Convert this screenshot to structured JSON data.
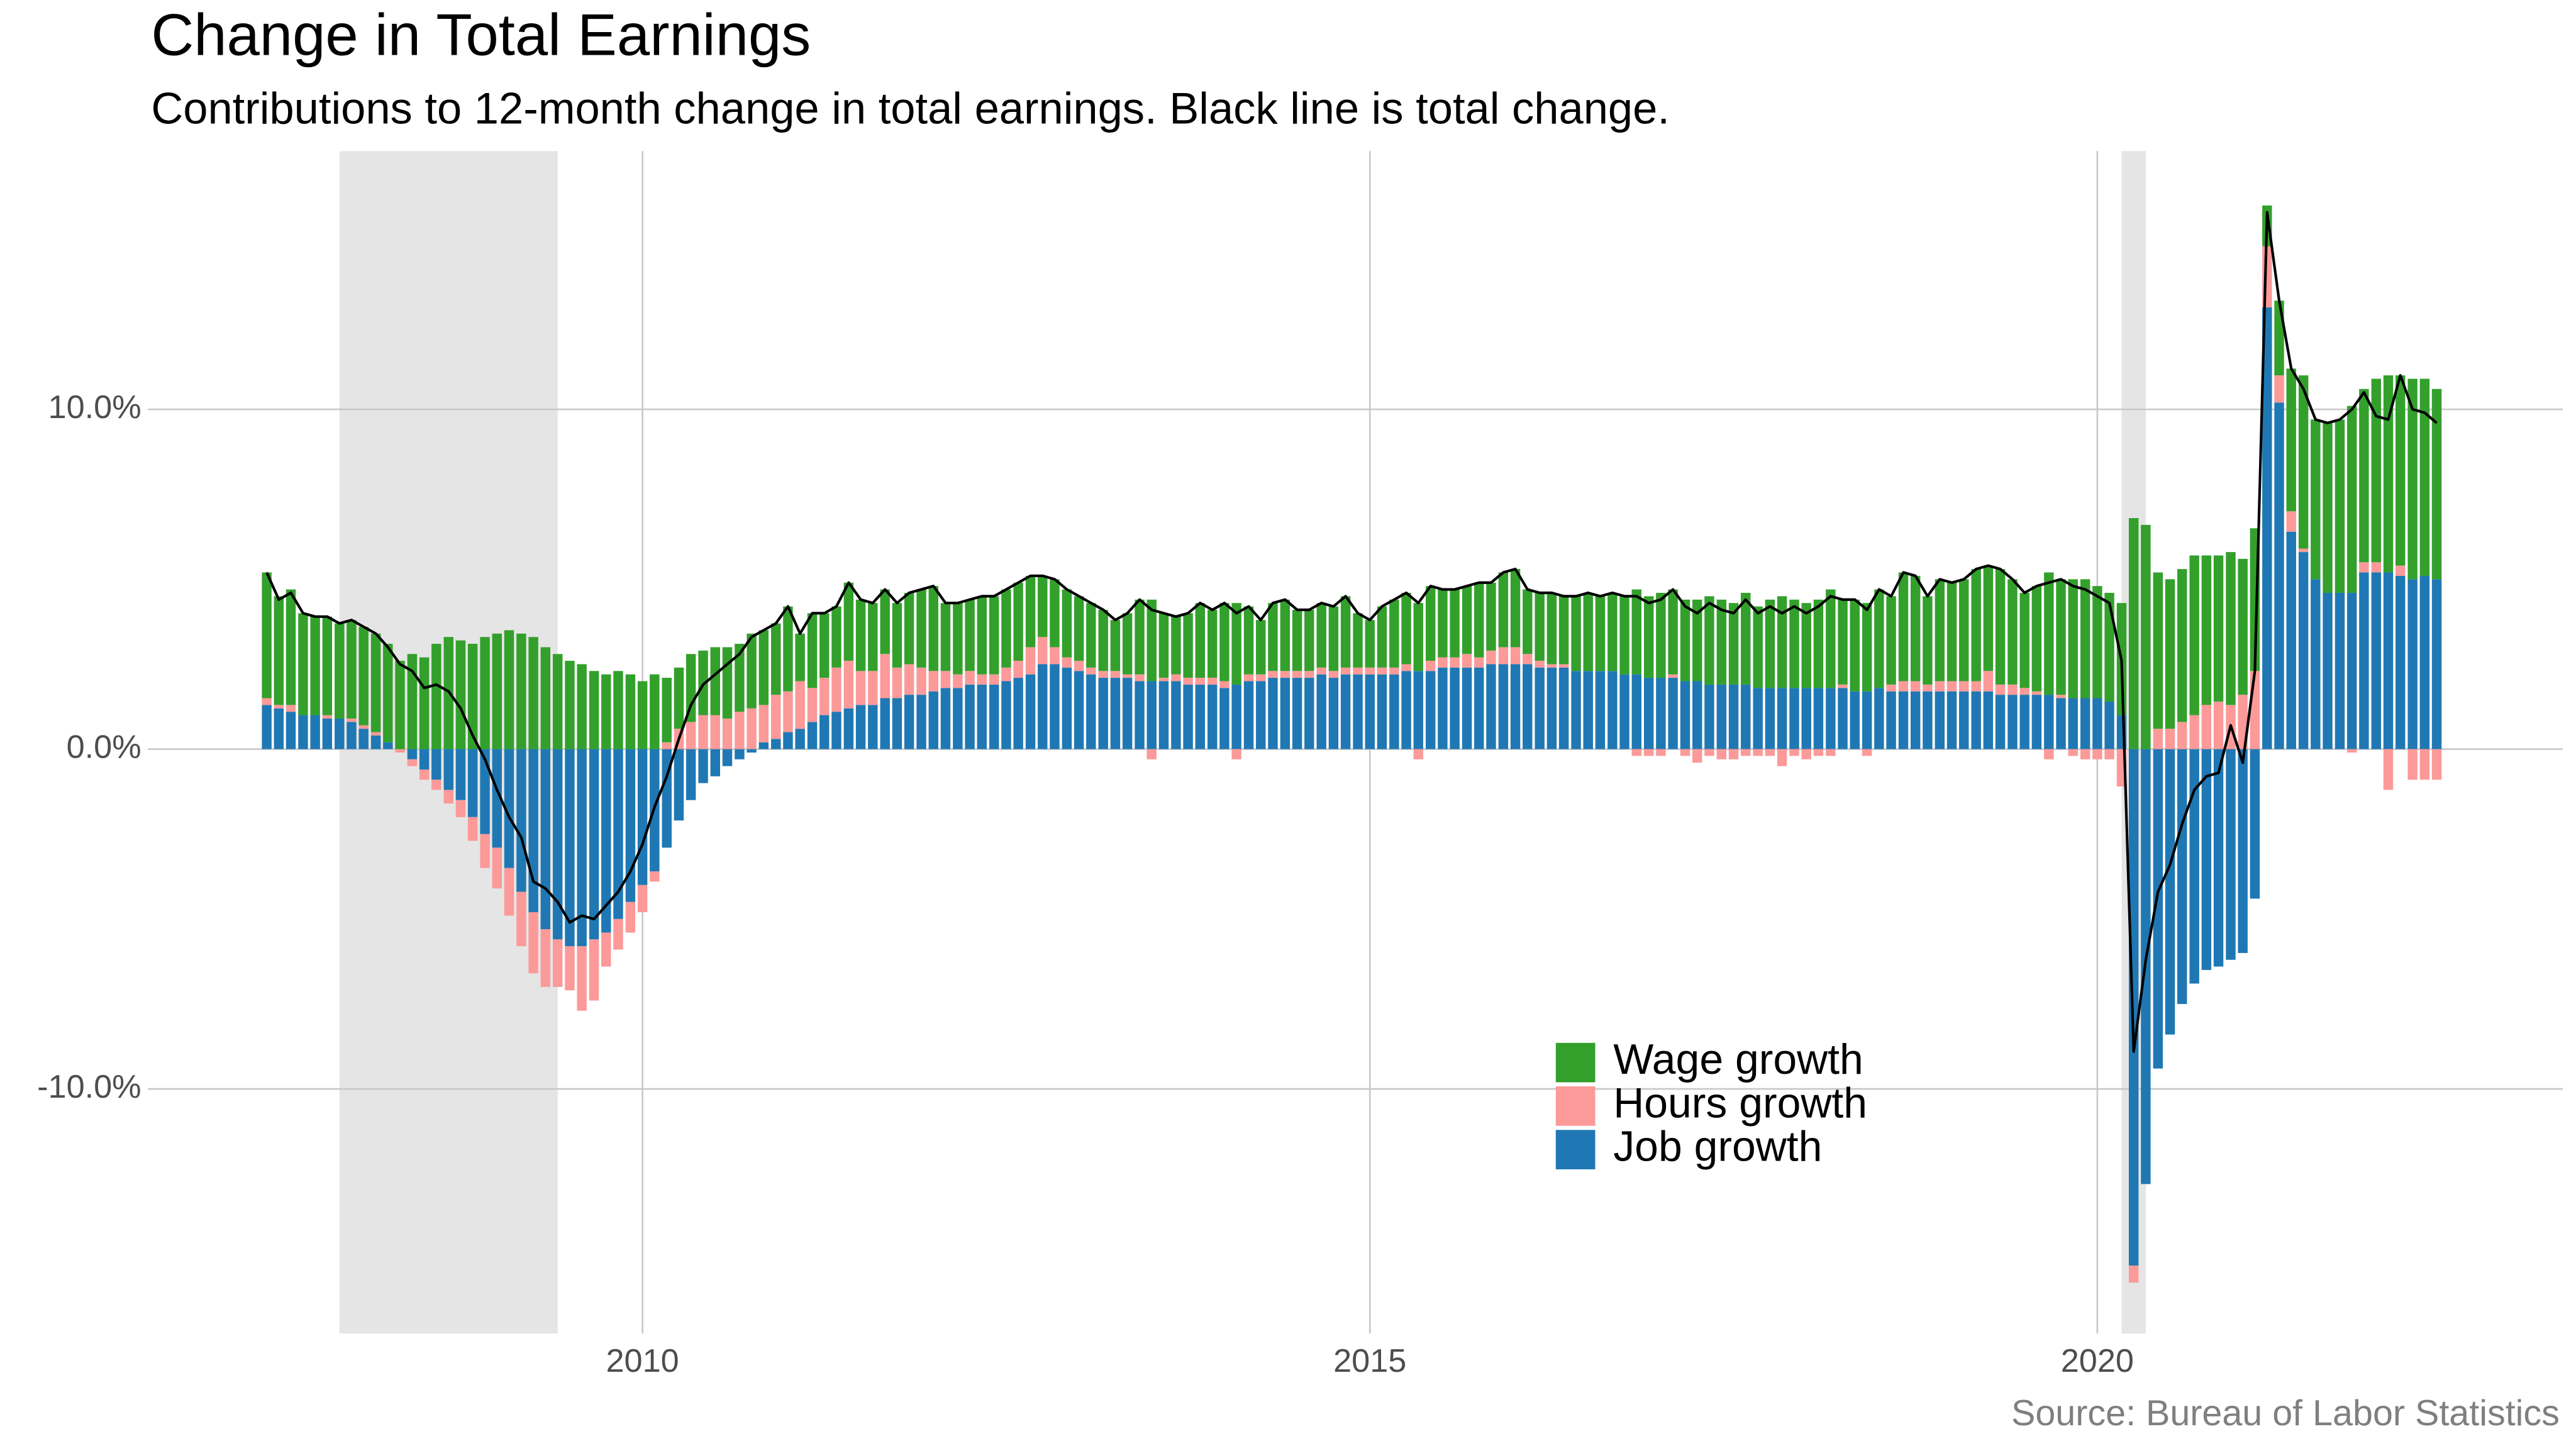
{
  "chart_data": {
    "type": "stacked_bar",
    "title": "Change in Total Earnings",
    "subtitle": "Contributions to 12-month change in total earnings. Black line is total change.",
    "source": "Source: Bureau of Labor Statistics",
    "xlim": [
      2006.6,
      2023.2
    ],
    "xticks": [
      2010,
      2015,
      2020
    ],
    "ylim": [
      -17.2,
      17.6
    ],
    "yticks": [
      {
        "value": -10,
        "label": "-10.0%"
      },
      {
        "value": 0,
        "label": "0.0%"
      },
      {
        "value": 10,
        "label": "10.0%"
      }
    ],
    "grid": true,
    "shaded_periods": [
      [
        2007.917,
        2009.417
      ],
      [
        2020.167,
        2020.333
      ]
    ],
    "shade_color": "#e5e5e5",
    "x": [
      2007.417,
      2007.5,
      2007.583,
      2007.667,
      2007.75,
      2007.833,
      2007.917,
      2008,
      2008.083,
      2008.167,
      2008.25,
      2008.333,
      2008.417,
      2008.5,
      2008.583,
      2008.667,
      2008.75,
      2008.833,
      2008.917,
      2009,
      2009.083,
      2009.167,
      2009.25,
      2009.333,
      2009.417,
      2009.5,
      2009.583,
      2009.667,
      2009.75,
      2009.833,
      2009.917,
      2010,
      2010.083,
      2010.167,
      2010.25,
      2010.333,
      2010.417,
      2010.5,
      2010.583,
      2010.667,
      2010.75,
      2010.833,
      2010.917,
      2011,
      2011.083,
      2011.167,
      2011.25,
      2011.333,
      2011.417,
      2011.5,
      2011.583,
      2011.667,
      2011.75,
      2011.833,
      2011.917,
      2012,
      2012.083,
      2012.167,
      2012.25,
      2012.333,
      2012.417,
      2012.5,
      2012.583,
      2012.667,
      2012.75,
      2012.833,
      2012.917,
      2013,
      2013.083,
      2013.167,
      2013.25,
      2013.333,
      2013.417,
      2013.5,
      2013.583,
      2013.667,
      2013.75,
      2013.833,
      2013.917,
      2014,
      2014.083,
      2014.167,
      2014.25,
      2014.333,
      2014.417,
      2014.5,
      2014.583,
      2014.667,
      2014.75,
      2014.833,
      2014.917,
      2015,
      2015.083,
      2015.167,
      2015.25,
      2015.333,
      2015.417,
      2015.5,
      2015.583,
      2015.667,
      2015.75,
      2015.833,
      2015.917,
      2016,
      2016.083,
      2016.167,
      2016.25,
      2016.333,
      2016.417,
      2016.5,
      2016.583,
      2016.667,
      2016.75,
      2016.833,
      2016.917,
      2017,
      2017.083,
      2017.167,
      2017.25,
      2017.333,
      2017.417,
      2017.5,
      2017.583,
      2017.667,
      2017.75,
      2017.833,
      2017.917,
      2018,
      2018.083,
      2018.167,
      2018.25,
      2018.333,
      2018.417,
      2018.5,
      2018.583,
      2018.667,
      2018.75,
      2018.833,
      2018.917,
      2019,
      2019.083,
      2019.167,
      2019.25,
      2019.333,
      2019.417,
      2019.5,
      2019.583,
      2019.667,
      2019.75,
      2019.833,
      2019.917,
      2020,
      2020.083,
      2020.167,
      2020.25,
      2020.333,
      2020.417,
      2020.5,
      2020.583,
      2020.667,
      2020.75,
      2020.833,
      2020.917,
      2021,
      2021.083,
      2021.167,
      2021.25,
      2021.333,
      2021.417,
      2021.5,
      2021.583,
      2021.667,
      2021.75,
      2021.833,
      2021.917,
      2022,
      2022.083,
      2022.167,
      2022.25,
      2022.333
    ],
    "series": [
      {
        "name": "Wage growth",
        "color": "#33a02c",
        "values": [
          3.7,
          3.2,
          3.4,
          3.0,
          2.9,
          2.9,
          2.8,
          2.9,
          2.9,
          2.9,
          2.9,
          2.6,
          2.8,
          2.7,
          3.1,
          3.3,
          3.2,
          3.1,
          3.3,
          3.4,
          3.5,
          3.4,
          3.3,
          3.0,
          2.8,
          2.6,
          2.5,
          2.3,
          2.2,
          2.3,
          2.2,
          2.0,
          2.2,
          1.9,
          1.8,
          2.0,
          1.9,
          2.0,
          2.1,
          2.0,
          2.2,
          2.2,
          2.1,
          2.5,
          1.4,
          2.2,
          1.9,
          1.8,
          2.3,
          2.1,
          2.0,
          1.9,
          1.9,
          2.1,
          2.3,
          2.5,
          2.0,
          2.1,
          2.1,
          2.3,
          2.3,
          2.3,
          2.3,
          2.1,
          1.8,
          2.0,
          2.0,
          1.9,
          1.9,
          1.8,
          1.5,
          1.8,
          2.2,
          2.4,
          1.9,
          1.7,
          1.9,
          2.2,
          2.0,
          2.3,
          2.4,
          2.0,
          1.6,
          2.0,
          2.1,
          1.8,
          1.8,
          1.9,
          1.9,
          2.1,
          1.6,
          1.4,
          1.8,
          2.0,
          2.1,
          2.0,
          2.2,
          2.0,
          2.0,
          2.0,
          2.2,
          2.0,
          2.2,
          2.3,
          1.9,
          2.0,
          2.1,
          2.0,
          2.2,
          2.3,
          2.2,
          2.3,
          2.3,
          2.5,
          2.4,
          2.5,
          2.5,
          2.4,
          2.4,
          2.6,
          2.5,
          2.4,
          2.7,
          2.4,
          2.6,
          2.7,
          2.6,
          2.5,
          2.6,
          2.9,
          2.5,
          2.7,
          2.6,
          2.9,
          2.6,
          3.2,
          3.1,
          2.6,
          3.0,
          2.9,
          3.0,
          3.3,
          3.1,
          3.4,
          3.1,
          2.8,
          3.1,
          3.6,
          3.4,
          3.5,
          3.5,
          3.3,
          3.2,
          3.3,
          6.8,
          6.6,
          4.6,
          4.4,
          4.5,
          4.7,
          4.4,
          4.3,
          4.5,
          4.0,
          4.2,
          1.2,
          2.2,
          4.2,
          5.1,
          4.7,
          5.0,
          5.1,
          5.5,
          5.1,
          5.4,
          5.8,
          5.6,
          5.9,
          5.8,
          5.6
        ]
      },
      {
        "name": "Hours growth",
        "color": "#fb9a99",
        "values": [
          0.2,
          0.1,
          0.2,
          0.0,
          0.0,
          0.1,
          0.0,
          0.1,
          0.1,
          0.1,
          0.0,
          -0.1,
          -0.2,
          -0.3,
          -0.3,
          -0.4,
          -0.5,
          -0.7,
          -1.0,
          -1.2,
          -1.4,
          -1.6,
          -1.8,
          -1.7,
          -1.4,
          -1.3,
          -1.9,
          -1.8,
          -1.0,
          -0.9,
          -0.9,
          -0.8,
          -0.3,
          0.2,
          0.6,
          0.8,
          1.0,
          1.0,
          0.9,
          1.1,
          1.2,
          1.1,
          1.3,
          1.2,
          1.4,
          1.0,
          1.1,
          1.3,
          1.4,
          1.0,
          1.0,
          1.3,
          0.9,
          0.9,
          0.8,
          0.6,
          0.5,
          0.4,
          0.4,
          0.3,
          0.3,
          0.4,
          0.5,
          0.8,
          0.8,
          0.5,
          0.3,
          0.3,
          0.2,
          0.2,
          0.2,
          0.1,
          0.2,
          -0.3,
          0.1,
          0.2,
          0.2,
          0.2,
          0.2,
          0.2,
          -0.3,
          0.2,
          0.2,
          0.2,
          0.2,
          0.2,
          0.2,
          0.2,
          0.2,
          0.2,
          0.2,
          0.2,
          0.2,
          0.2,
          0.2,
          -0.3,
          0.3,
          0.3,
          0.3,
          0.4,
          0.3,
          0.4,
          0.5,
          0.5,
          0.3,
          0.2,
          0.1,
          0.1,
          0.0,
          0.0,
          0.0,
          0.0,
          0.0,
          -0.2,
          -0.2,
          -0.2,
          0.1,
          -0.2,
          -0.4,
          -0.2,
          -0.3,
          -0.3,
          -0.2,
          -0.2,
          -0.2,
          -0.5,
          -0.2,
          -0.3,
          -0.2,
          -0.2,
          0.1,
          0.0,
          -0.2,
          0.0,
          0.2,
          0.3,
          0.3,
          0.2,
          0.3,
          0.3,
          0.3,
          0.3,
          0.6,
          0.3,
          0.3,
          0.2,
          0.1,
          -0.3,
          0.1,
          -0.2,
          -0.3,
          -0.3,
          -0.3,
          -1.1,
          -0.5,
          0.0,
          0.6,
          0.6,
          0.8,
          1.0,
          1.3,
          1.4,
          1.3,
          1.6,
          2.3,
          1.8,
          0.8,
          0.6,
          0.1,
          0.0,
          0.0,
          0.0,
          -0.1,
          0.3,
          0.3,
          -1.2,
          0.3,
          -0.9,
          -0.9,
          -0.9
        ]
      },
      {
        "name": "Job growth",
        "color": "#1f78b4",
        "values": [
          1.3,
          1.2,
          1.1,
          1.0,
          1.0,
          0.9,
          0.9,
          0.8,
          0.6,
          0.4,
          0.2,
          0.0,
          -0.3,
          -0.6,
          -0.9,
          -1.2,
          -1.5,
          -2.0,
          -2.5,
          -2.9,
          -3.5,
          -4.2,
          -4.8,
          -5.3,
          -5.6,
          -5.8,
          -5.8,
          -5.6,
          -5.4,
          -5.0,
          -4.5,
          -4.0,
          -3.6,
          -2.9,
          -2.1,
          -1.5,
          -1.0,
          -0.8,
          -0.5,
          -0.3,
          -0.1,
          0.2,
          0.3,
          0.5,
          0.6,
          0.8,
          1.0,
          1.1,
          1.2,
          1.3,
          1.3,
          1.5,
          1.5,
          1.6,
          1.6,
          1.7,
          1.8,
          1.8,
          1.9,
          1.9,
          1.9,
          2.0,
          2.1,
          2.2,
          2.5,
          2.5,
          2.4,
          2.3,
          2.2,
          2.1,
          2.1,
          2.1,
          2.0,
          2.0,
          2.0,
          2.0,
          1.9,
          1.9,
          1.9,
          1.8,
          1.9,
          2.0,
          2.0,
          2.1,
          2.1,
          2.1,
          2.1,
          2.2,
          2.1,
          2.2,
          2.2,
          2.2,
          2.2,
          2.2,
          2.3,
          2.3,
          2.3,
          2.4,
          2.4,
          2.4,
          2.4,
          2.5,
          2.5,
          2.5,
          2.5,
          2.4,
          2.4,
          2.4,
          2.3,
          2.3,
          2.3,
          2.3,
          2.2,
          2.2,
          2.1,
          2.1,
          2.1,
          2.0,
          2.0,
          1.9,
          1.9,
          1.9,
          1.9,
          1.8,
          1.8,
          1.8,
          1.8,
          1.8,
          1.8,
          1.8,
          1.8,
          1.7,
          1.7,
          1.8,
          1.7,
          1.7,
          1.7,
          1.7,
          1.7,
          1.7,
          1.7,
          1.7,
          1.7,
          1.6,
          1.6,
          1.6,
          1.6,
          1.6,
          1.5,
          1.5,
          1.5,
          1.5,
          1.4,
          1.0,
          -15.2,
          -12.8,
          -9.4,
          -8.4,
          -7.5,
          -6.9,
          -6.5,
          -6.4,
          -6.2,
          -6.0,
          -4.4,
          13.0,
          10.2,
          6.4,
          5.8,
          5.0,
          4.6,
          4.6,
          4.6,
          5.2,
          5.2,
          5.2,
          5.1,
          5.0,
          5.1,
          5.0
        ]
      }
    ],
    "total": {
      "color": "#000000",
      "values": [
        5.2,
        4.4,
        4.6,
        4.0,
        3.9,
        3.9,
        3.7,
        3.8,
        3.6,
        3.4,
        3.0,
        2.5,
        2.3,
        1.8,
        1.9,
        1.7,
        1.2,
        0.4,
        -0.3,
        -1.2,
        -2.0,
        -2.6,
        -3.9,
        -4.1,
        -4.5,
        -5.1,
        -4.9,
        -5.0,
        -4.6,
        -4.2,
        -3.6,
        -2.8,
        -1.7,
        -0.8,
        0.3,
        1.3,
        1.9,
        2.2,
        2.5,
        2.8,
        3.3,
        3.5,
        3.7,
        4.2,
        3.4,
        4.0,
        4.0,
        4.2,
        4.9,
        4.4,
        4.3,
        4.7,
        4.3,
        4.6,
        4.7,
        4.8,
        4.3,
        4.3,
        4.4,
        4.5,
        4.5,
        4.7,
        4.9,
        5.1,
        5.1,
        5.0,
        4.7,
        4.5,
        4.3,
        4.1,
        3.8,
        4.0,
        4.4,
        4.1,
        4.0,
        3.9,
        4.0,
        4.3,
        4.1,
        4.3,
        4.0,
        4.2,
        3.8,
        4.3,
        4.4,
        4.1,
        4.1,
        4.3,
        4.2,
        4.5,
        4.0,
        3.8,
        4.2,
        4.4,
        4.6,
        4.3,
        4.8,
        4.7,
        4.7,
        4.8,
        4.9,
        4.9,
        5.2,
        5.3,
        4.7,
        4.6,
        4.6,
        4.5,
        4.5,
        4.6,
        4.5,
        4.6,
        4.5,
        4.5,
        4.3,
        4.4,
        4.7,
        4.2,
        4.0,
        4.3,
        4.1,
        4.0,
        4.4,
        4.0,
        4.2,
        4.0,
        4.2,
        4.0,
        4.2,
        4.5,
        4.4,
        4.4,
        4.1,
        4.7,
        4.5,
        5.2,
        5.1,
        4.5,
        5.0,
        4.9,
        5.0,
        5.3,
        5.4,
        5.3,
        5.0,
        4.6,
        4.8,
        4.9,
        5.0,
        4.8,
        4.7,
        4.5,
        4.3,
        2.6,
        -8.9,
        -6.2,
        -4.2,
        -3.4,
        -2.2,
        -1.2,
        -0.8,
        -0.7,
        0.7,
        -0.4,
        2.3,
        15.8,
        13.2,
        11.2,
        10.6,
        9.7,
        9.6,
        9.7,
        10.0,
        10.5,
        9.8,
        9.7,
        11.0,
        10.0,
        9.9,
        9.6
      ]
    }
  }
}
